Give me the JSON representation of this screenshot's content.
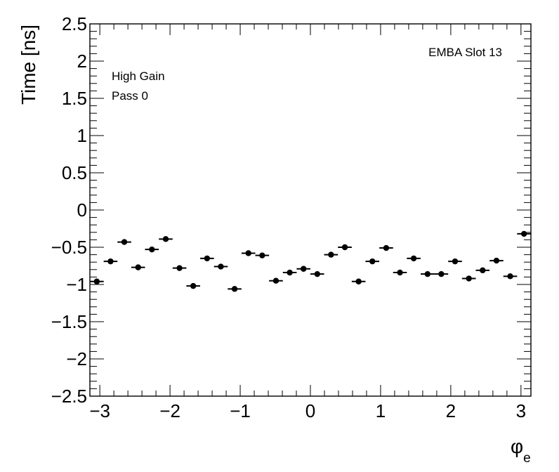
{
  "chart_data": {
    "type": "scatter",
    "ylabel": "Time [ns]",
    "xlabel_symbol": "φ",
    "xlabel_subscript": "e",
    "xlim": [
      -3.1416,
      3.1416
    ],
    "ylim": [
      -2.5,
      2.5
    ],
    "grid": false,
    "annotations": {
      "top_right": "EMBA Slot 13",
      "line1": "High Gain",
      "line2": "Pass 0"
    },
    "x_ticks": [
      {
        "value": -3,
        "label": "−3"
      },
      {
        "value": -2,
        "label": "−2"
      },
      {
        "value": -1,
        "label": "−1"
      },
      {
        "value": 0,
        "label": "0"
      },
      {
        "value": 1,
        "label": "1"
      },
      {
        "value": 2,
        "label": "2"
      },
      {
        "value": 3,
        "label": "3"
      }
    ],
    "y_ticks": [
      {
        "value": 2.5,
        "label": "2.5"
      },
      {
        "value": 2,
        "label": "2"
      },
      {
        "value": 1.5,
        "label": "1.5"
      },
      {
        "value": 1,
        "label": "1"
      },
      {
        "value": 0.5,
        "label": "0.5"
      },
      {
        "value": 0,
        "label": "0"
      },
      {
        "value": -0.5,
        "label": "−0.5"
      },
      {
        "value": -1,
        "label": "−1"
      },
      {
        "value": -1.5,
        "label": "−1.5"
      },
      {
        "value": -2,
        "label": "−2"
      },
      {
        "value": -2.5,
        "label": "−2.5"
      }
    ],
    "x_bin_halfwidth": 0.098,
    "points": [
      {
        "x": -3.043,
        "y": -0.96
      },
      {
        "x": -2.847,
        "y": -0.69
      },
      {
        "x": -2.651,
        "y": -0.43
      },
      {
        "x": -2.454,
        "y": -0.77
      },
      {
        "x": -2.258,
        "y": -0.53
      },
      {
        "x": -2.061,
        "y": -0.39
      },
      {
        "x": -1.865,
        "y": -0.78
      },
      {
        "x": -1.669,
        "y": -1.02
      },
      {
        "x": -1.472,
        "y": -0.65
      },
      {
        "x": -1.276,
        "y": -0.76
      },
      {
        "x": -1.08,
        "y": -1.06
      },
      {
        "x": -0.883,
        "y": -0.58
      },
      {
        "x": -0.687,
        "y": -0.61
      },
      {
        "x": -0.491,
        "y": -0.95
      },
      {
        "x": -0.294,
        "y": -0.84
      },
      {
        "x": -0.098,
        "y": -0.79
      },
      {
        "x": 0.098,
        "y": -0.86
      },
      {
        "x": 0.294,
        "y": -0.6
      },
      {
        "x": 0.491,
        "y": -0.5
      },
      {
        "x": 0.687,
        "y": -0.96
      },
      {
        "x": 0.883,
        "y": -0.69
      },
      {
        "x": 1.08,
        "y": -0.51
      },
      {
        "x": 1.276,
        "y": -0.84
      },
      {
        "x": 1.472,
        "y": -0.65
      },
      {
        "x": 1.669,
        "y": -0.86
      },
      {
        "x": 1.865,
        "y": -0.86
      },
      {
        "x": 2.061,
        "y": -0.69
      },
      {
        "x": 2.258,
        "y": -0.92
      },
      {
        "x": 2.454,
        "y": -0.81
      },
      {
        "x": 2.651,
        "y": -0.68
      },
      {
        "x": 2.847,
        "y": -0.89
      },
      {
        "x": 3.043,
        "y": -0.32
      }
    ]
  }
}
